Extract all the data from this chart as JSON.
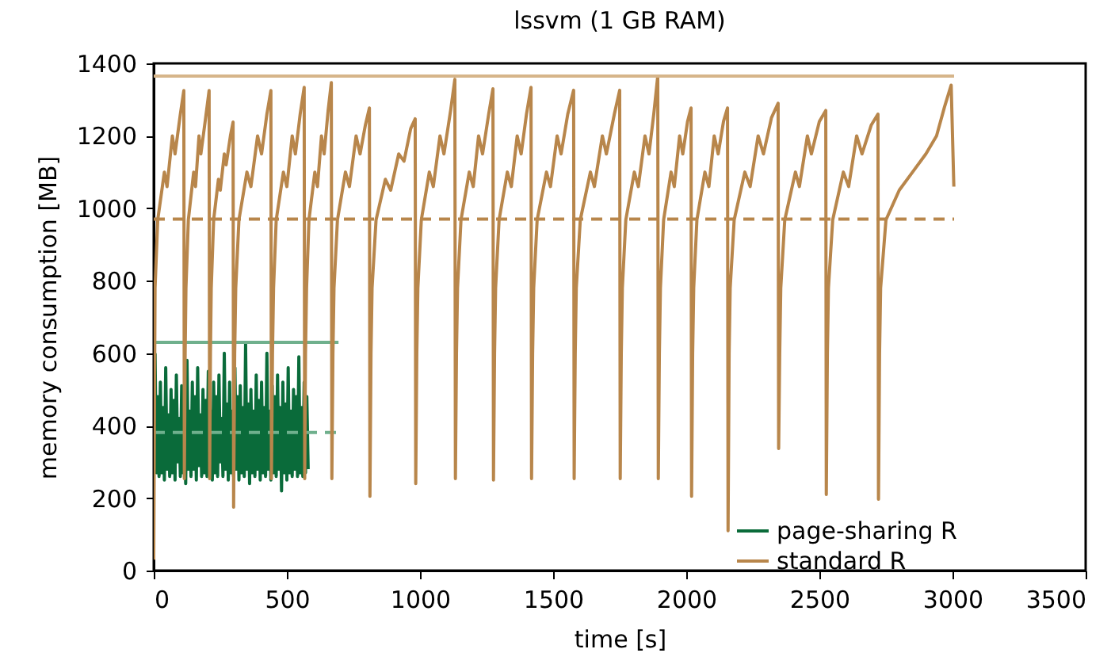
{
  "chart_data": {
    "type": "line",
    "title": "lssvm (1 GB RAM)",
    "xlabel": "time [s]",
    "ylabel": "memory consumption [MB]",
    "xlim": [
      0,
      3500
    ],
    "xticks": [
      0,
      500,
      1000,
      1500,
      2000,
      2500,
      3000,
      3500
    ],
    "ylim": [
      0,
      1400
    ],
    "yticks": [
      0,
      200,
      400,
      600,
      800,
      1000,
      1200,
      1400
    ],
    "legend": "bottom right",
    "grid": false,
    "line_style": "solid",
    "series": [
      {
        "name": "page-sharing R",
        "color": "#0a6b3a",
        "x": [
          5,
          10,
          15,
          20,
          25,
          30,
          35,
          40,
          45,
          50,
          55,
          60,
          65,
          70,
          75,
          80,
          85,
          90,
          95,
          100,
          105,
          110,
          115,
          120,
          125,
          130,
          135,
          140,
          145,
          150,
          155,
          160,
          165,
          170,
          175,
          180,
          185,
          190,
          195,
          200,
          205,
          210,
          215,
          220,
          225,
          230,
          235,
          240,
          245,
          250,
          255,
          260,
          265,
          270,
          275,
          280,
          285,
          290,
          295,
          300,
          305,
          310,
          315,
          320,
          325,
          330,
          335,
          340,
          345,
          350,
          355,
          360,
          365,
          370,
          375,
          380,
          385,
          390,
          395,
          400,
          405,
          410,
          415,
          420,
          425,
          430,
          435,
          440,
          445,
          450,
          455,
          460,
          465,
          470,
          475,
          480,
          485,
          490,
          495,
          500,
          505,
          510,
          515,
          520,
          525,
          530,
          535,
          540,
          545,
          550,
          555,
          560,
          565,
          570,
          575,
          580
        ],
        "values": [
          600,
          270,
          480,
          260,
          520,
          270,
          450,
          250,
          560,
          280,
          430,
          260,
          500,
          270,
          470,
          250,
          540,
          300,
          420,
          260,
          510,
          270,
          460,
          240,
          580,
          280,
          440,
          260,
          520,
          280,
          480,
          250,
          560,
          290,
          430,
          260,
          500,
          270,
          470,
          260,
          550,
          280,
          440,
          250,
          520,
          270,
          480,
          260,
          540,
          300,
          420,
          260,
          600,
          280,
          460,
          250,
          520,
          270,
          440,
          260,
          560,
          280,
          480,
          250,
          510,
          270,
          450,
          260,
          625,
          280,
          460,
          240,
          500,
          270,
          440,
          260,
          540,
          280,
          470,
          250,
          520,
          270,
          450,
          260,
          600,
          280,
          440,
          250,
          510,
          270,
          480,
          260,
          540,
          280,
          450,
          220,
          520,
          270,
          460,
          250,
          560,
          270,
          440,
          260,
          500,
          280,
          480,
          260,
          590,
          270,
          450,
          260,
          520,
          270,
          480,
          280
        ]
      },
      {
        "color": "#6fb08d",
        "x": [
          0,
          694
        ],
        "values": [
          630,
          630
        ]
      },
      {
        "color": "#6fb08d",
        "line_style": "dashed",
        "x": [
          0,
          694
        ],
        "values": [
          381,
          381
        ]
      },
      {
        "name": "standard R",
        "color": "#b8864b",
        "x": [
          0,
          5,
          15,
          40,
          50,
          70,
          80,
          100,
          113,
          115,
          118,
          121,
          130,
          150,
          157,
          170,
          177,
          195,
          208,
          210,
          213,
          216,
          225,
          243,
          250,
          265,
          272,
          288,
          298,
          300,
          304,
          308,
          320,
          350,
          365,
          390,
          405,
          425,
          440,
          442,
          446,
          450,
          460,
          487,
          500,
          520,
          532,
          550,
          565,
          567,
          570,
          574,
          583,
          605,
          615,
          630,
          640,
          655,
          667,
          669,
          673,
          677,
          690,
          720,
          735,
          760,
          775,
          795,
          810,
          812,
          816,
          820,
          835,
          870,
          890,
          920,
          940,
          965,
          982,
          984,
          988,
          992,
          1005,
          1035,
          1050,
          1075,
          1090,
          1115,
          1131,
          1133,
          1137,
          1141,
          1154,
          1185,
          1200,
          1220,
          1235,
          1258,
          1274,
          1276,
          1280,
          1284,
          1297,
          1328,
          1343,
          1365,
          1380,
          1400,
          1417,
          1419,
          1423,
          1427,
          1440,
          1475,
          1490,
          1515,
          1530,
          1555,
          1577,
          1579,
          1583,
          1587,
          1602,
          1640,
          1655,
          1685,
          1700,
          1730,
          1750,
          1752,
          1756,
          1760,
          1773,
          1805,
          1820,
          1845,
          1860,
          1878,
          1893,
          1895,
          1899,
          1903,
          1915,
          1943,
          1955,
          1975,
          1987,
          2005,
          2018,
          2020,
          2024,
          2028,
          2040,
          2070,
          2085,
          2105,
          2120,
          2140,
          2155,
          2157,
          2161,
          2165,
          2180,
          2220,
          2240,
          2270,
          2290,
          2320,
          2345,
          2347,
          2351,
          2355,
          2370,
          2410,
          2425,
          2455,
          2470,
          2500,
          2524,
          2526,
          2530,
          2534,
          2550,
          2590,
          2610,
          2640,
          2660,
          2695,
          2720,
          2722,
          2726,
          2730,
          2750,
          2800,
          2850,
          2900,
          2940,
          2970,
          2995,
          3005
        ],
        "values": [
          30,
          780,
          968,
          1100,
          1060,
          1200,
          1150,
          1260,
          1325,
          254,
          600,
          780,
          968,
          1100,
          1060,
          1200,
          1150,
          1250,
          1325,
          254,
          600,
          780,
          968,
          1080,
          1050,
          1150,
          1120,
          1200,
          1238,
          175,
          600,
          780,
          968,
          1100,
          1060,
          1200,
          1150,
          1260,
          1325,
          254,
          600,
          780,
          968,
          1100,
          1060,
          1200,
          1150,
          1260,
          1334,
          254,
          600,
          780,
          968,
          1100,
          1060,
          1200,
          1150,
          1270,
          1347,
          254,
          600,
          780,
          968,
          1100,
          1060,
          1200,
          1150,
          1230,
          1277,
          205,
          600,
          780,
          968,
          1080,
          1050,
          1150,
          1130,
          1220,
          1247,
          240,
          600,
          780,
          968,
          1100,
          1060,
          1200,
          1150,
          1270,
          1356,
          254,
          600,
          780,
          968,
          1100,
          1060,
          1200,
          1150,
          1260,
          1330,
          250,
          600,
          780,
          968,
          1100,
          1060,
          1200,
          1150,
          1260,
          1334,
          254,
          600,
          780,
          968,
          1100,
          1060,
          1200,
          1150,
          1260,
          1326,
          254,
          600,
          780,
          968,
          1100,
          1060,
          1200,
          1150,
          1260,
          1326,
          254,
          600,
          780,
          968,
          1100,
          1060,
          1200,
          1150,
          1260,
          1365,
          254,
          600,
          780,
          968,
          1100,
          1060,
          1200,
          1150,
          1240,
          1277,
          205,
          600,
          780,
          968,
          1100,
          1060,
          1200,
          1150,
          1240,
          1277,
          110,
          600,
          780,
          968,
          1100,
          1060,
          1200,
          1150,
          1250,
          1290,
          337,
          600,
          780,
          968,
          1100,
          1060,
          1200,
          1150,
          1240,
          1270,
          210,
          600,
          780,
          968,
          1100,
          1060,
          1200,
          1150,
          1230,
          1260,
          197,
          600,
          780,
          968,
          1050,
          1100,
          1150,
          1200,
          1280,
          1340,
          1060
        ]
      },
      {
        "color": "#d6b58a",
        "x": [
          0,
          3006
        ],
        "values": [
          1365,
          1365
        ]
      },
      {
        "color": "#b8864b",
        "line_style": "dashed",
        "x": [
          0,
          3006
        ],
        "values": [
          970,
          970
        ]
      }
    ]
  }
}
